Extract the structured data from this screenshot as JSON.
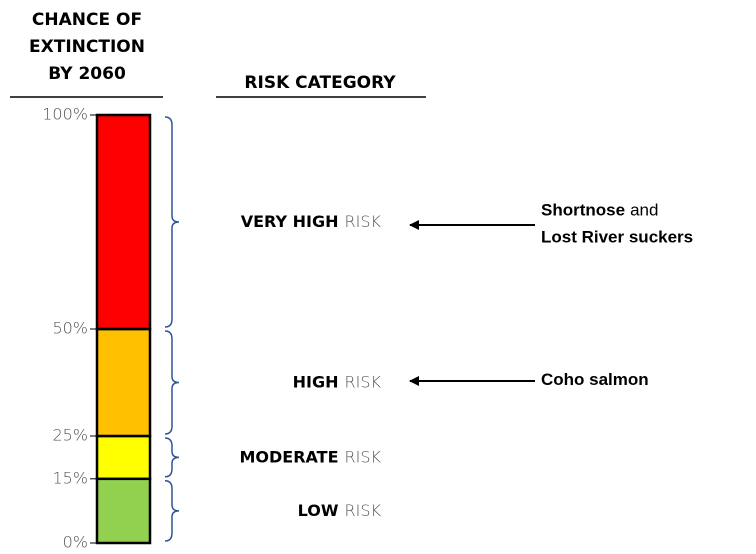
{
  "chart_data": {
    "type": "stacked-bar",
    "title_lines": [
      "CHANCE OF",
      "EXTINCTION",
      "BY 2060"
    ],
    "category_header": "RISK CATEGORY",
    "risk_word": "RISK",
    "series": [
      {
        "name": "LOW",
        "color": "#92d050",
        "values": [
          15
        ]
      },
      {
        "name": "MODERATE",
        "color": "#ffff00",
        "values": [
          10
        ]
      },
      {
        "name": "HIGH",
        "color": "#ffc000",
        "values": [
          25
        ]
      },
      {
        "name": "VERY HIGH",
        "color": "#ff0000",
        "values": [
          50
        ]
      }
    ],
    "ylim": [
      0,
      100
    ],
    "yticks": [
      {
        "value": 0,
        "label": "0%"
      },
      {
        "value": 15,
        "label": "15%"
      },
      {
        "value": 25,
        "label": "25%"
      },
      {
        "value": 50,
        "label": "50%"
      },
      {
        "value": 100,
        "label": "100%"
      }
    ],
    "annotations": [
      {
        "lines": [
          {
            "bold": "Shortnose",
            "regular": "and"
          },
          {
            "bold": "Lost River suckers"
          }
        ]
      },
      {
        "lines": [
          {
            "bold": "Coho salmon"
          }
        ]
      }
    ]
  }
}
